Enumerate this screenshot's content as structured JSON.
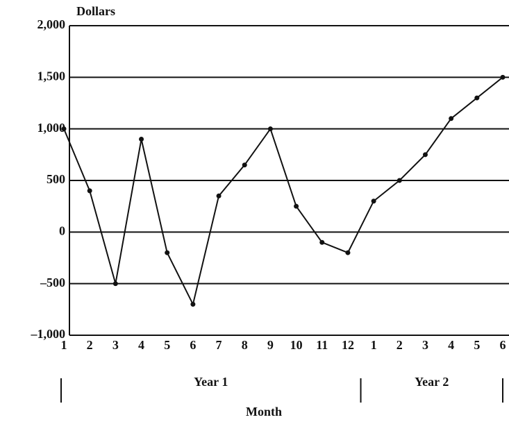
{
  "chart_data": {
    "type": "line",
    "y_label": "Dollars",
    "x_label": "Month",
    "groups": [
      "Year 1",
      "Year 2"
    ],
    "categories": [
      "1",
      "2",
      "3",
      "4",
      "5",
      "6",
      "7",
      "8",
      "9",
      "10",
      "11",
      "12",
      "1",
      "2",
      "3",
      "4",
      "5",
      "6"
    ],
    "series": [
      {
        "name": "Dollars",
        "color": "#111111",
        "values": [
          1000,
          400,
          -500,
          900,
          -200,
          -700,
          350,
          650,
          1000,
          250,
          -100,
          -200,
          300,
          500,
          750,
          1100,
          1300,
          1500
        ]
      }
    ],
    "ylim": [
      -1000,
      2000
    ],
    "yticks": [
      {
        "value": -1000,
        "label": "–1,000"
      },
      {
        "value": -500,
        "label": "–500"
      },
      0,
      500,
      {
        "value": 1000,
        "label": "1,000"
      },
      {
        "value": 1500,
        "label": "1,500"
      },
      {
        "value": 2000,
        "label": "2,000"
      }
    ],
    "grid": true
  }
}
